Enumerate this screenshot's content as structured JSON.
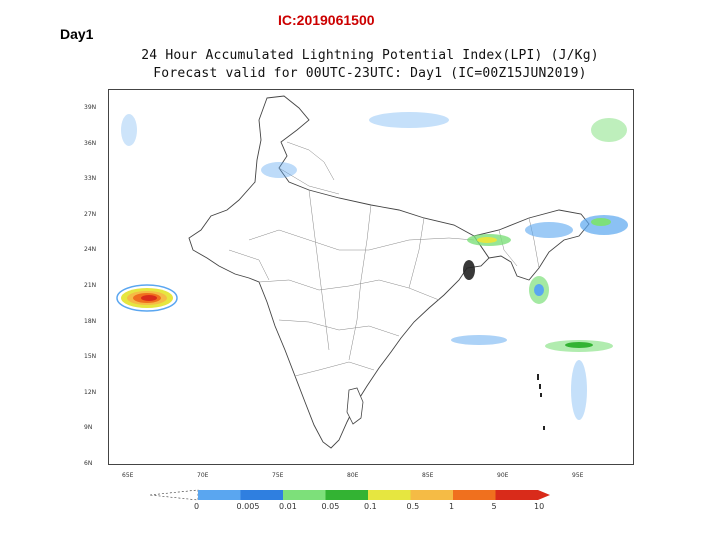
{
  "day_label": "Day1",
  "ic_label": "IC:2019061500",
  "title": {
    "line1": "24 Hour Accumulated Lightning Potential Index(LPI) (J/Kg)",
    "line2": "Forecast valid for 00UTC-23UTC: Day1 (IC=00Z15JUN2019)"
  },
  "map": {
    "lat_ticks": [
      "39N",
      "36N",
      "33N",
      "27N",
      "24N",
      "21N",
      "18N",
      "15N",
      "12N",
      "9N",
      "6N"
    ],
    "lon_ticks": [
      "65E",
      "70E",
      "75E",
      "80E",
      "85E",
      "90E",
      "95E"
    ],
    "land_color": "#ffffff",
    "boundary_color": "#555555"
  },
  "colorbar": {
    "labels": [
      "0",
      "0.005",
      "0.01",
      "0.05",
      "0.1",
      "0.5",
      "1",
      "5",
      "10"
    ],
    "colors": [
      "#5aa6f0",
      "#2f7fe0",
      "#7de07a",
      "#33b333",
      "#e6e640",
      "#f5bb45",
      "#f0701e",
      "#d92b1a"
    ]
  }
}
